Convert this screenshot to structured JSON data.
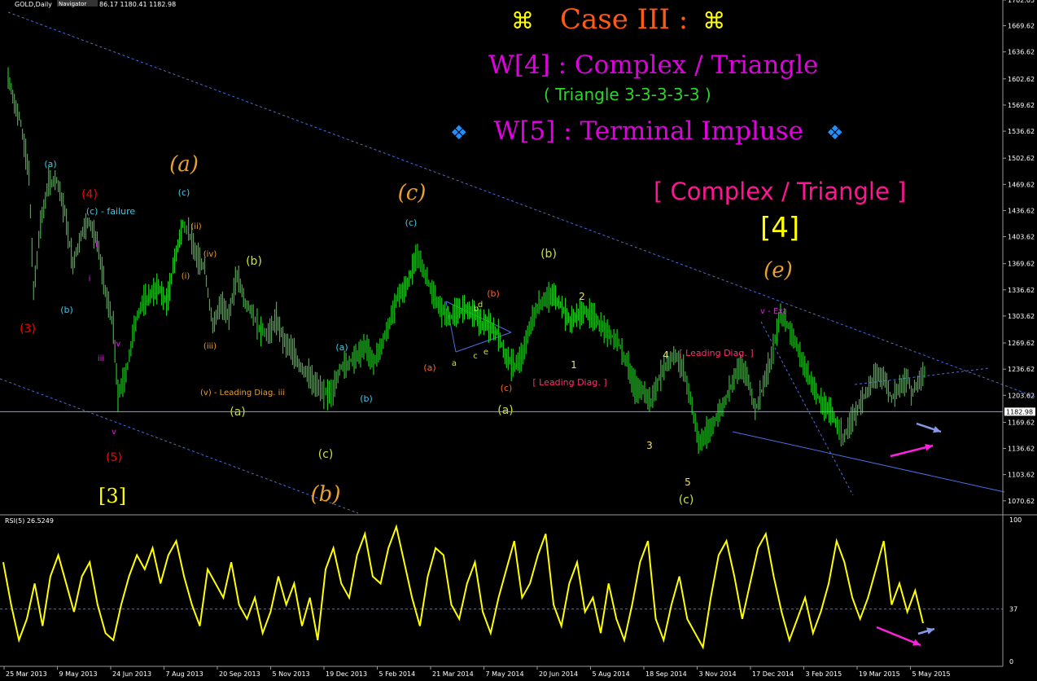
{
  "symbol_title": "GOLD,Daily",
  "navigator_tab": "Navigator",
  "ohlc_text": "86.17 1180.41 1182.98",
  "current_price": "1182.98",
  "rsi_label": "RSI(5) 26.5249",
  "headings": {
    "case": "Case III :",
    "case_symbol": "⌘",
    "w4": "W[4] : Complex / Triangle",
    "triangle": "( Triangle 3-3-3-3-3 )",
    "w5": "W[5] : Terminal Impluse",
    "w5_symbol": "❖",
    "complex_triangle": "[ Complex / Triangle ]",
    "wave4": "[4]"
  },
  "colors": {
    "background": "#000000",
    "candles": "#22c522",
    "rsi": "#ffff00",
    "trendlines": "#4a6ee0",
    "price_line": "#8da2e8",
    "grid": "#9a9a9a"
  },
  "chart_data": [
    {
      "type": "line",
      "title": "GOLD,Daily",
      "ylim": [
        1055,
        1700
      ],
      "y_ticks": [
        "1702.05",
        "1669.62",
        "1636.62",
        "1602.62",
        "1569.62",
        "1536.62",
        "1502.62",
        "1469.62",
        "1436.62",
        "1403.62",
        "1369.62",
        "1336.62",
        "1303.62",
        "1269.62",
        "1236.62",
        "1203.62",
        "1169.62",
        "1136.62",
        "1103.62",
        "1070.62"
      ],
      "x_ticks": [
        "25 Mar 2013",
        "9 May 2013",
        "24 Jun 2013",
        "7 Aug 2013",
        "20 Sep 2013",
        "5 Nov 2013",
        "19 Dec 2013",
        "5 Feb 2014",
        "21 Mar 2014",
        "7 May 2014",
        "20 Jun 2014",
        "5 Aug 2014",
        "18 Sep 2014",
        "3 Nov 2014",
        "17 Dec 2014",
        "3 Feb 2015",
        "19 Mar 2015",
        "5 May 2015"
      ],
      "x": [
        "2013-03-25",
        "2013-03-29",
        "2013-04-05",
        "2013-04-12",
        "2013-04-16",
        "2013-04-22",
        "2013-04-29",
        "2013-05-06",
        "2013-05-13",
        "2013-05-20",
        "2013-05-27",
        "2013-06-03",
        "2013-06-10",
        "2013-06-17",
        "2013-06-24",
        "2013-06-28",
        "2013-07-05",
        "2013-07-12",
        "2013-07-19",
        "2013-07-26",
        "2013-08-02",
        "2013-08-09",
        "2013-08-16",
        "2013-08-23",
        "2013-08-28",
        "2013-09-04",
        "2013-09-11",
        "2013-09-18",
        "2013-09-25",
        "2013-10-02",
        "2013-10-09",
        "2013-10-16",
        "2013-10-23",
        "2013-10-28",
        "2013-11-05",
        "2013-11-12",
        "2013-11-19",
        "2013-11-26",
        "2013-12-03",
        "2013-12-10",
        "2013-12-17",
        "2013-12-23",
        "2013-12-31",
        "2014-01-07",
        "2014-01-14",
        "2014-01-21",
        "2014-01-28",
        "2014-02-04",
        "2014-02-11",
        "2014-02-18",
        "2014-02-25",
        "2014-03-04",
        "2014-03-11",
        "2014-03-14",
        "2014-03-21",
        "2014-03-28",
        "2014-04-04",
        "2014-04-11",
        "2014-04-18",
        "2014-04-25",
        "2014-05-02",
        "2014-05-09",
        "2014-05-16",
        "2014-05-23",
        "2014-05-30",
        "2014-06-06",
        "2014-06-13",
        "2014-06-20",
        "2014-06-27",
        "2014-07-04",
        "2014-07-10",
        "2014-07-17",
        "2014-07-24",
        "2014-07-31",
        "2014-08-07",
        "2014-08-14",
        "2014-08-21",
        "2014-08-28",
        "2014-09-04",
        "2014-09-11",
        "2014-09-18",
        "2014-09-25",
        "2014-10-02",
        "2014-10-09",
        "2014-10-16",
        "2014-10-23",
        "2014-10-30",
        "2014-11-05",
        "2014-11-12",
        "2014-11-19",
        "2014-11-26",
        "2014-12-03",
        "2014-12-10",
        "2014-12-17",
        "2014-12-24",
        "2014-12-31",
        "2015-01-07",
        "2015-01-14",
        "2015-01-22",
        "2015-01-29",
        "2015-02-05",
        "2015-02-12",
        "2015-02-19",
        "2015-02-26",
        "2015-03-05",
        "2015-03-12",
        "2015-03-17",
        "2015-03-24",
        "2015-03-31",
        "2015-04-07",
        "2015-04-14",
        "2015-04-21",
        "2015-04-28",
        "2015-05-05",
        "2015-05-12",
        "2015-05-15",
        "2015-05-22",
        "2015-05-28"
      ],
      "series": [
        {
          "values": [
            1605,
            1580,
            1545,
            1485,
            1335,
            1420,
            1470,
            1475,
            1435,
            1370,
            1405,
            1425,
            1395,
            1335,
            1290,
            1205,
            1230,
            1290,
            1320,
            1330,
            1340,
            1320,
            1375,
            1420,
            1410,
            1380,
            1365,
            1290,
            1320,
            1305,
            1355,
            1320,
            1305,
            1290,
            1280,
            1300,
            1270,
            1260,
            1240,
            1230,
            1215,
            1205,
            1210,
            1240,
            1245,
            1255,
            1265,
            1245,
            1265,
            1295,
            1330,
            1340,
            1370,
            1380,
            1355,
            1330,
            1310,
            1300,
            1310,
            1315,
            1305,
            1295,
            1290,
            1280,
            1250,
            1240,
            1255,
            1295,
            1320,
            1325,
            1330,
            1315,
            1295,
            1305,
            1310,
            1300,
            1290,
            1280,
            1270,
            1245,
            1215,
            1210,
            1195,
            1225,
            1245,
            1255,
            1235,
            1200,
            1145,
            1155,
            1170,
            1190,
            1215,
            1240,
            1230,
            1185,
            1215,
            1250,
            1305,
            1290,
            1265,
            1240,
            1215,
            1195,
            1185,
            1165,
            1150,
            1170,
            1190,
            1210,
            1230,
            1225,
            1200,
            1215,
            1225,
            1205,
            1225,
            1235
          ]
        }
      ],
      "hline_value": 1182.98
    },
    {
      "type": "line",
      "title": "RSI(5) 26.5249",
      "ylim": [
        0,
        100
      ],
      "y_ticks": [
        "100",
        "37",
        "0"
      ],
      "reference_level": 37,
      "series": [
        {
          "name": "RSI(5) 26.5249",
          "values": [
            70,
            40,
            15,
            30,
            55,
            25,
            60,
            75,
            55,
            35,
            60,
            70,
            40,
            20,
            15,
            40,
            60,
            75,
            65,
            80,
            55,
            75,
            85,
            60,
            40,
            25,
            65,
            55,
            45,
            70,
            40,
            30,
            45,
            20,
            35,
            60,
            40,
            55,
            25,
            45,
            15,
            65,
            80,
            55,
            45,
            75,
            90,
            60,
            55,
            80,
            95,
            70,
            45,
            25,
            60,
            80,
            75,
            40,
            30,
            55,
            70,
            35,
            20,
            45,
            65,
            85,
            45,
            55,
            75,
            90,
            40,
            25,
            55,
            70,
            35,
            45,
            20,
            55,
            30,
            15,
            40,
            70,
            85,
            30,
            15,
            40,
            60,
            30,
            20,
            10,
            45,
            75,
            85,
            60,
            30,
            55,
            80,
            90,
            60,
            35,
            15,
            30,
            45,
            20,
            35,
            55,
            85,
            70,
            45,
            30,
            45,
            65,
            85,
            40,
            55,
            35,
            50,
            27
          ]
        }
      ]
    }
  ],
  "annotations": [
    {
      "t": "(3)",
      "c": "#ff0000",
      "p": 14
    },
    {
      "t": "(4)",
      "c": "#ff0000",
      "p": 14
    },
    {
      "t": "(5)",
      "c": "#ff0000",
      "p": 14
    },
    {
      "t": "[3]",
      "c": "#ffff00",
      "p": 24
    },
    {
      "t": "(a)",
      "c": "#3fc8e8",
      "p": 11
    },
    {
      "t": "(c) - failure",
      "c": "#3fc8e8",
      "p": 11
    },
    {
      "t": "(b)",
      "c": "#3fc8e8",
      "p": 11
    },
    {
      "t": "ii",
      "c": "#e020e0",
      "p": 10
    },
    {
      "t": "i",
      "c": "#e020e0",
      "p": 10
    },
    {
      "t": "iii",
      "c": "#e020e0",
      "p": 10
    },
    {
      "t": "iv",
      "c": "#e020e0",
      "p": 10
    },
    {
      "t": "v",
      "c": "#e020e0",
      "p": 10
    },
    {
      "t": "(a)",
      "c": "#e8a030",
      "p": 26
    },
    {
      "t": "(c)",
      "c": "#3fc8e8",
      "p": 11
    },
    {
      "t": "(i)",
      "c": "#e8a030",
      "p": 10
    },
    {
      "t": "(ii)",
      "c": "#e8a030",
      "p": 10
    },
    {
      "t": "(iii)",
      "c": "#e8a030",
      "p": 10
    },
    {
      "t": "(iv)",
      "c": "#e8a030",
      "p": 10
    },
    {
      "t": "(v) - Leading Diag. iii",
      "c": "#e8a030",
      "p": 10
    },
    {
      "t": "(a)",
      "c": "#c8e040",
      "p": 14
    },
    {
      "t": "(b)",
      "c": "#c8e040",
      "p": 14
    },
    {
      "t": "(c)",
      "c": "#c8e040",
      "p": 14
    },
    {
      "t": "(b)",
      "c": "#e8a030",
      "p": 26
    },
    {
      "t": "(c)",
      "c": "#e8a030",
      "p": 26
    },
    {
      "t": "(e)",
      "c": "#e8a030",
      "p": 26
    },
    {
      "t": "(a)",
      "c": "#3fc8e8",
      "p": 11
    },
    {
      "t": "(b)",
      "c": "#3fc8e8",
      "p": 11
    },
    {
      "t": "(c)",
      "c": "#3fc8e8",
      "p": 11
    },
    {
      "t": "(a)",
      "c": "#c8e040",
      "p": 14
    },
    {
      "t": "(b)",
      "c": "#c8e040",
      "p": 14
    },
    {
      "t": "(c)",
      "c": "#c8e040",
      "p": 14
    },
    {
      "t": "(a)",
      "c": "#ff6030",
      "p": 11
    },
    {
      "t": "(b)",
      "c": "#ff6030",
      "p": 11
    },
    {
      "t": "(c)",
      "c": "#ff6030",
      "p": 11
    },
    {
      "t": "[ Leading Diag. ]",
      "c": "#ff3070",
      "p": 11
    },
    {
      "t": "[ Leading Diag. ]",
      "c": "#ff3070",
      "p": 11
    },
    {
      "t": "v - Ext",
      "c": "#e020e0",
      "p": 10
    },
    {
      "t": "1",
      "c": "#f0e060",
      "p": 12
    },
    {
      "t": "2",
      "c": "#f0e060",
      "p": 12
    },
    {
      "t": "3",
      "c": "#f0e060",
      "p": 12
    },
    {
      "t": "4",
      "c": "#f0e060",
      "p": 12
    },
    {
      "t": "5",
      "c": "#f0e060",
      "p": 12
    },
    {
      "t": "a",
      "c": "#c8e040",
      "p": 10
    },
    {
      "t": "b",
      "c": "#c8e040",
      "p": 10
    },
    {
      "t": "c",
      "c": "#c8e040",
      "p": 10
    },
    {
      "t": "d",
      "c": "#c8e040",
      "p": 10
    },
    {
      "t": "e",
      "c": "#c8e040",
      "p": 10
    }
  ]
}
